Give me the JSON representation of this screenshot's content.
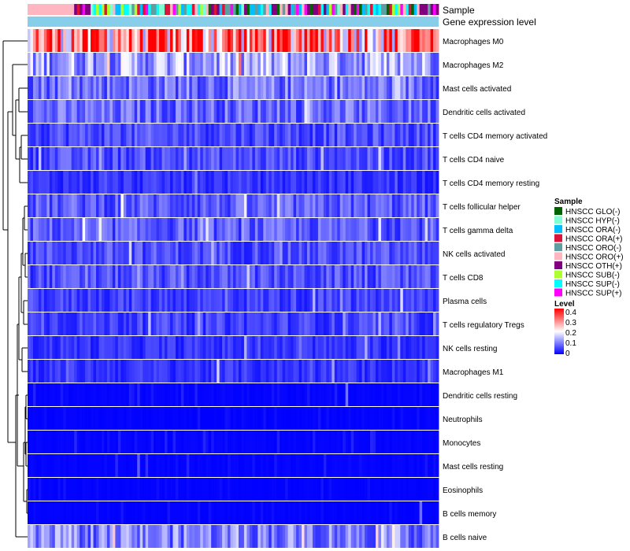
{
  "chart_data": {
    "type": "heatmap",
    "title": "",
    "annotation_tracks": [
      "Sample",
      "Gene expression level"
    ],
    "rows": [
      {
        "name": "Macrophages M0",
        "level": 0.3
      },
      {
        "name": "Macrophages M2",
        "level": 0.13
      },
      {
        "name": "Mast cells activated",
        "level": 0.09
      },
      {
        "name": "Dendritic cells activated",
        "level": 0.08
      },
      {
        "name": "T cells CD4 memory activated",
        "level": 0.06
      },
      {
        "name": "T cells CD4 naive",
        "level": 0.06
      },
      {
        "name": "T cells CD4 memory resting",
        "level": 0.04
      },
      {
        "name": "T cells follicular helper",
        "level": 0.07
      },
      {
        "name": "T cells gamma delta",
        "level": 0.07
      },
      {
        "name": "NK cells activated",
        "level": 0.06
      },
      {
        "name": "T cells CD8",
        "level": 0.06
      },
      {
        "name": "Plasma cells",
        "level": 0.05
      },
      {
        "name": "T cells regulatory  Tregs",
        "level": 0.05
      },
      {
        "name": "NK cells resting",
        "level": 0.04
      },
      {
        "name": "Macrophages M1",
        "level": 0.04
      },
      {
        "name": "Dendritic cells resting",
        "level": 0.02
      },
      {
        "name": "Neutrophils",
        "level": 0.01
      },
      {
        "name": "Monocytes",
        "level": 0.02
      },
      {
        "name": "Mast cells resting",
        "level": 0.02
      },
      {
        "name": "Eosinophils",
        "level": 0.01
      },
      {
        "name": "B cells memory",
        "level": 0.01
      },
      {
        "name": "B cells naive",
        "level": 0.1
      }
    ],
    "columns_count": 150,
    "legend_sample": {
      "title": "Sample",
      "items": [
        {
          "label": "HNSCC GLO(-)",
          "color": "#006400"
        },
        {
          "label": "HNSCC HYP(-)",
          "color": "#7fffd4"
        },
        {
          "label": "HNSCC ORA(-)",
          "color": "#00bfff"
        },
        {
          "label": "HNSCC ORA(+)",
          "color": "#dc143c"
        },
        {
          "label": "HNSCC ORO(-)",
          "color": "#5f9ea0"
        },
        {
          "label": "HNSCC ORO(+)",
          "color": "#ffb6c1"
        },
        {
          "label": "HNSCC OTH(+)",
          "color": "#800080"
        },
        {
          "label": "HNSCC SUB(-)",
          "color": "#adff2f"
        },
        {
          "label": "HNSCC SUP(-)",
          "color": "#00ffff"
        },
        {
          "label": "HNSCC SUP(+)",
          "color": "#ff00ff"
        }
      ]
    },
    "legend_level": {
      "title": "Level",
      "ticks": [
        "0.4",
        "0.3",
        "0.2",
        "0.1",
        "0"
      ],
      "range": [
        0,
        0.4
      ],
      "colors": [
        "#0000ff",
        "#ffffff",
        "#ff0000"
      ]
    },
    "gene_expression_color": "#87ceeb",
    "dendrogram": "row clustering tree on left"
  }
}
